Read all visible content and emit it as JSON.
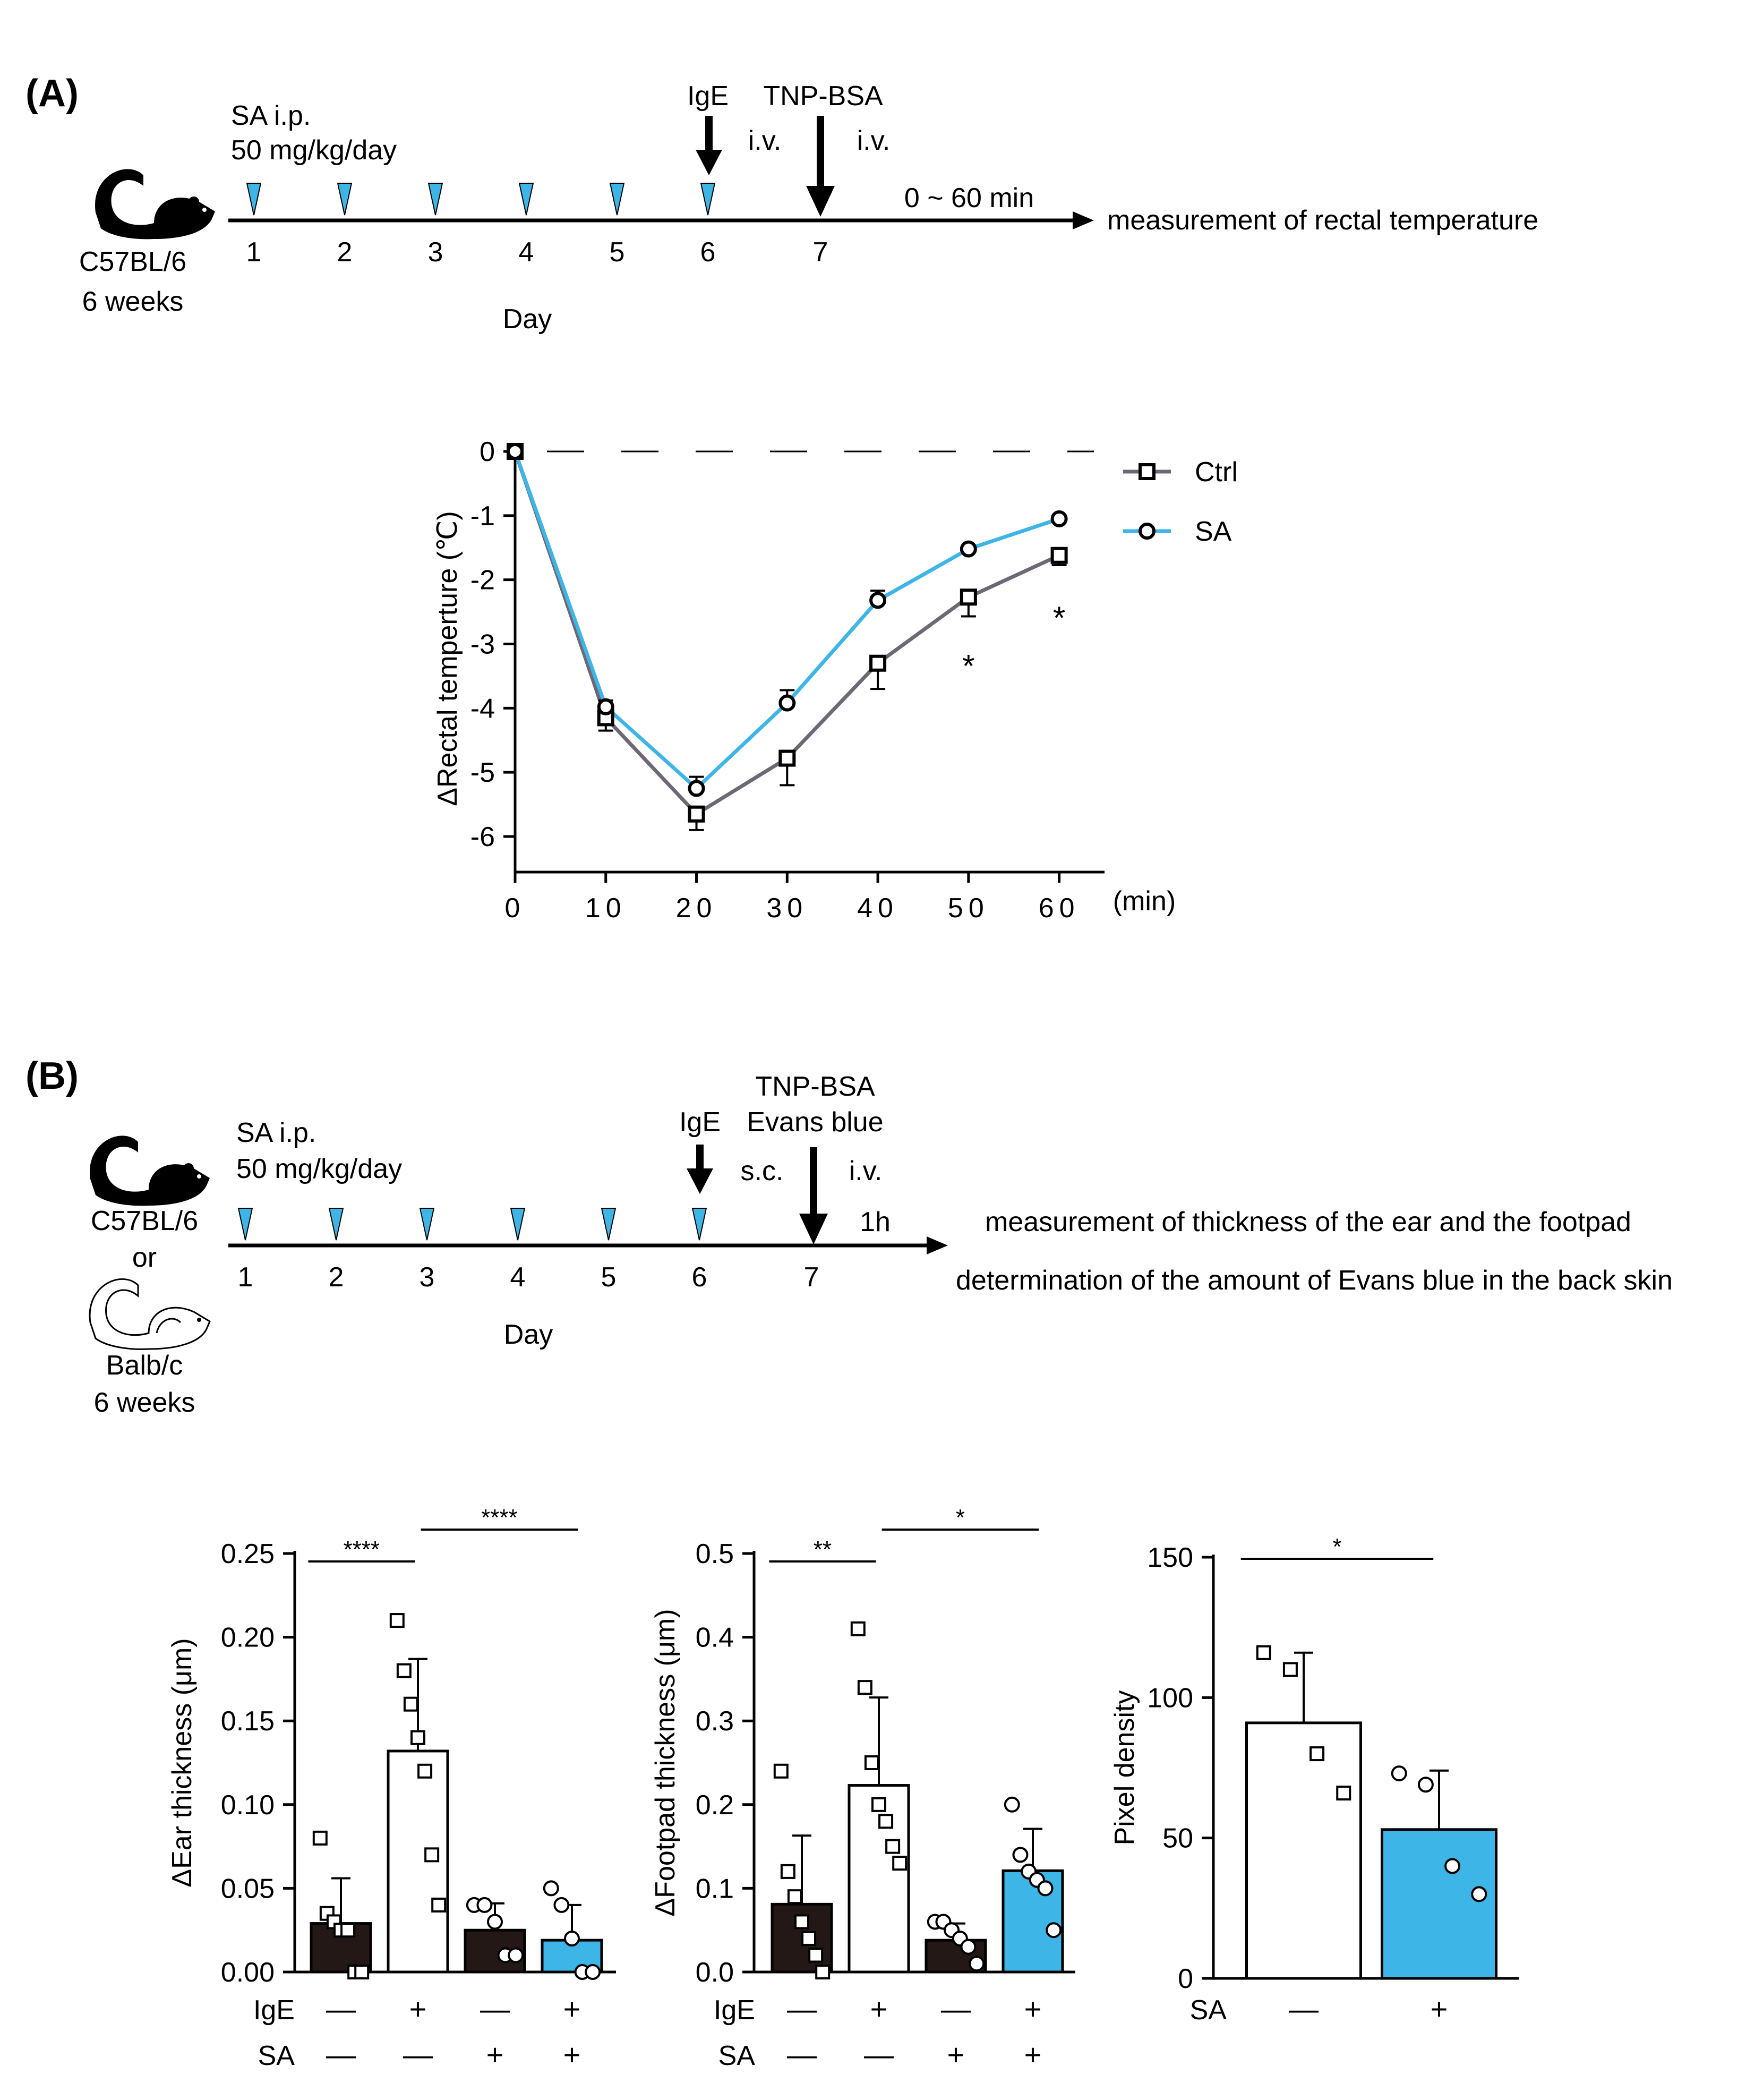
{
  "colors": {
    "sa": "#3db5e6",
    "ctrl": "#6e6875",
    "dark": "#231815",
    "white": "#ffffff",
    "black": "#000000"
  },
  "panelA": {
    "label": "(A)",
    "mouse_icon": "black-mouse-icon",
    "strain": "C57BL/6",
    "age": "6 weeks",
    "treatment_line1": "SA i.p.",
    "treatment_line2": "50 mg/kg/day",
    "ige_label": "IgE",
    "ige_route": "i.v.",
    "tnp_label": "TNP-BSA",
    "tnp_route": "i.v.",
    "time_window": "0 ~ 60 min",
    "outcome": "measurement of rectal temperature",
    "days": [
      "1",
      "2",
      "3",
      "4",
      "5",
      "6",
      "7"
    ],
    "sa_injection_days": [
      1,
      2,
      3,
      4,
      5,
      6
    ],
    "day_label": "Day"
  },
  "panelB": {
    "label": "(B)",
    "mouse1_icon": "black-mouse-icon",
    "mouse2_icon": "white-mouse-icon",
    "strain1": "C57BL/6",
    "or_text": "or",
    "strain2": "Balb/c",
    "age": "6 weeks",
    "treatment_line1": "SA i.p.",
    "treatment_line2": "50 mg/kg/day",
    "ige_label": "IgE",
    "ige_route": "s.c.",
    "tnp_label": "TNP-BSA",
    "evans_label": "Evans blue",
    "tnp_route": "i.v.",
    "time_window": "1h",
    "outcome1": "measurement of thickness of the ear and the footpad",
    "outcome2": "determination of the amount of Evans blue in the back skin",
    "days": [
      "1",
      "2",
      "3",
      "4",
      "5",
      "6",
      "7"
    ],
    "sa_injection_days": [
      1,
      2,
      3,
      4,
      5,
      6
    ],
    "day_label": "Day"
  },
  "chart_data": [
    {
      "id": "rectal",
      "type": "line",
      "title": "",
      "xlabel": "",
      "x_unit": "(min)",
      "ylabel": "ΔRectal temperture (℃)",
      "x": [
        0,
        10,
        20,
        30,
        40,
        50,
        60
      ],
      "xticks": [
        "0",
        "10",
        "20",
        "30",
        "40",
        "50",
        "60"
      ],
      "yticks": [
        "0",
        "-1",
        "-2",
        "-3",
        "-4",
        "-5",
        "-6"
      ],
      "ylim": [
        -6.5,
        0
      ],
      "xlim": [
        0,
        65
      ],
      "legend_position": "top-right",
      "series": [
        {
          "name": "Ctrl",
          "marker": "square",
          "color": "#6e6875",
          "values": [
            0,
            -4.15,
            -5.65,
            -4.78,
            -3.3,
            -2.27,
            -1.62
          ],
          "err": [
            0,
            0.2,
            0.25,
            0.42,
            0.4,
            0.3,
            0.15
          ]
        },
        {
          "name": "SA",
          "marker": "circle",
          "color": "#3db5e6",
          "values": [
            0,
            -3.98,
            -5.25,
            -3.92,
            -2.32,
            -1.52,
            -1.05
          ],
          "err": [
            0,
            0.1,
            0.18,
            0.2,
            0.15,
            0.05,
            0.05
          ]
        }
      ],
      "annotations": [
        {
          "x": 50,
          "text": "*",
          "y": -3.2
        },
        {
          "x": 60,
          "text": "*",
          "y": -2.45
        }
      ]
    },
    {
      "id": "ear",
      "type": "bar",
      "ylabel": "ΔEar thickness (μm)",
      "ylim": [
        0,
        0.25
      ],
      "yticks": [
        0,
        0.05,
        0.1,
        0.15,
        0.2,
        0.25
      ],
      "ytick_labels": [
        "0.00",
        "0.05",
        "0.10",
        "0.15",
        "0.20",
        "0.25"
      ],
      "row_labels": [
        "IgE",
        "SA"
      ],
      "rows": [
        [
          "—",
          "+",
          "—",
          "+"
        ],
        [
          "—",
          "—",
          "+",
          "+"
        ]
      ],
      "bars": [
        {
          "mean": 0.029,
          "sd": 0.027,
          "fill": "dark",
          "marker": "square",
          "points": [
            0.08,
            0.035,
            0.03,
            0.025,
            0.025,
            0.0,
            0.0
          ]
        },
        {
          "mean": 0.132,
          "sd": 0.055,
          "fill": "white",
          "marker": "square",
          "points": [
            0.21,
            0.18,
            0.16,
            0.14,
            0.12,
            0.07,
            0.04
          ]
        },
        {
          "mean": 0.025,
          "sd": 0.016,
          "fill": "dark",
          "marker": "circle",
          "points": [
            0.04,
            0.04,
            0.03,
            0.01,
            0.01
          ]
        },
        {
          "mean": 0.019,
          "sd": 0.021,
          "fill": "sa",
          "marker": "circle",
          "points": [
            0.05,
            0.04,
            0.02,
            0.0,
            0.0
          ]
        }
      ],
      "significance": [
        {
          "from": 0,
          "to": 1,
          "text": "****"
        },
        {
          "from": 1,
          "to": 3,
          "text": "****"
        }
      ]
    },
    {
      "id": "footpad",
      "type": "bar",
      "ylabel": "ΔFootpad thickness (μm)",
      "ylim": [
        0,
        0.5
      ],
      "yticks": [
        0,
        0.1,
        0.2,
        0.3,
        0.4,
        0.5
      ],
      "ytick_labels": [
        "0.0",
        "0.1",
        "0.2",
        "0.3",
        "0.4",
        "0.5"
      ],
      "row_labels": [
        "IgE",
        "SA"
      ],
      "rows": [
        [
          "—",
          "+",
          "—",
          "+"
        ],
        [
          "—",
          "—",
          "+",
          "+"
        ]
      ],
      "bars": [
        {
          "mean": 0.081,
          "sd": 0.082,
          "fill": "dark",
          "marker": "square",
          "points": [
            0.24,
            0.12,
            0.09,
            0.06,
            0.04,
            0.02,
            0.0
          ]
        },
        {
          "mean": 0.223,
          "sd": 0.105,
          "fill": "white",
          "marker": "square",
          "points": [
            0.41,
            0.34,
            0.25,
            0.2,
            0.18,
            0.15,
            0.13
          ]
        },
        {
          "mean": 0.038,
          "sd": 0.02,
          "fill": "dark",
          "marker": "circle",
          "points": [
            0.06,
            0.06,
            0.05,
            0.04,
            0.03,
            0.01
          ]
        },
        {
          "mean": 0.121,
          "sd": 0.05,
          "fill": "sa",
          "marker": "circle",
          "points": [
            0.2,
            0.14,
            0.12,
            0.11,
            0.1,
            0.05
          ]
        }
      ],
      "significance": [
        {
          "from": 0,
          "to": 1,
          "text": "**"
        },
        {
          "from": 1,
          "to": 3,
          "text": "*"
        }
      ]
    },
    {
      "id": "pixel",
      "type": "bar",
      "ylabel": "Pixel density",
      "ylim": [
        0,
        150
      ],
      "yticks": [
        0,
        50,
        100,
        150
      ],
      "ytick_labels": [
        "0",
        "50",
        "100",
        "150"
      ],
      "row_labels": [
        "SA"
      ],
      "rows": [
        [
          "—",
          "+"
        ]
      ],
      "bars": [
        {
          "mean": 91,
          "sd": 25,
          "fill": "white",
          "marker": "square",
          "points": [
            116,
            110,
            80,
            66
          ]
        },
        {
          "mean": 53,
          "sd": 21,
          "fill": "sa",
          "marker": "circle",
          "points": [
            73,
            69,
            40,
            30
          ]
        }
      ],
      "significance": [
        {
          "from": 0,
          "to": 1,
          "text": "*"
        }
      ]
    }
  ]
}
